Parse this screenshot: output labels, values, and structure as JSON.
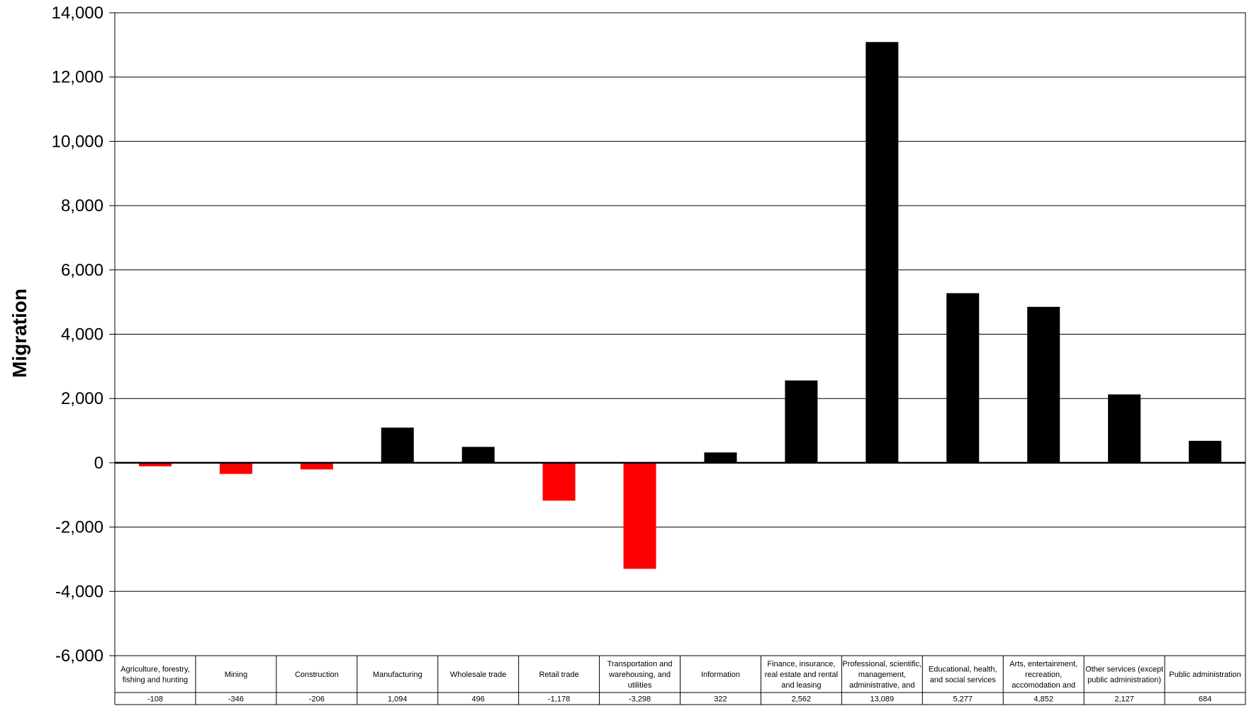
{
  "chart_data": {
    "type": "bar",
    "ylabel": "Migration",
    "ylim": [
      -6000,
      14000
    ],
    "yticks": [
      "14,000",
      "12,000",
      "10,000",
      "8,000",
      "6,000",
      "4,000",
      "2,000",
      "0",
      "-2,000",
      "-4,000",
      "-6,000"
    ],
    "ytick_values": [
      14000,
      12000,
      10000,
      8000,
      6000,
      4000,
      2000,
      0,
      -2000,
      -4000,
      -6000
    ],
    "grid": true,
    "colors": {
      "positive": "#000000",
      "negative": "#ff0000"
    },
    "categories": [
      [
        "Agriculture, forestry,",
        "fishing and hunting"
      ],
      [
        "Mining"
      ],
      [
        "Construction"
      ],
      [
        "Manufacturing"
      ],
      [
        "Wholesale trade"
      ],
      [
        "Retail trade"
      ],
      [
        "Transportation and",
        "warehousing, and",
        "utilities"
      ],
      [
        "Information"
      ],
      [
        "Finance, insurance,",
        "real estate and rental",
        "and leasing"
      ],
      [
        "Professional, scientific,",
        "management,",
        "administrative, and"
      ],
      [
        "Educational, health,",
        "and social services"
      ],
      [
        "Arts, entertainment,",
        "recreation,",
        "accomodation and"
      ],
      [
        "Other services (except",
        "public administration)"
      ],
      [
        "Public administration"
      ]
    ],
    "values": [
      -108,
      -346,
      -206,
      1094,
      496,
      -1178,
      -3298,
      322,
      2562,
      13089,
      5277,
      4852,
      2127,
      684
    ],
    "value_labels": [
      "-108",
      "-346",
      "-206",
      "1,094",
      "496",
      "-1,178",
      "-3,298",
      "322",
      "2,562",
      "13,089",
      "5,277",
      "4,852",
      "2,127",
      "684"
    ]
  }
}
